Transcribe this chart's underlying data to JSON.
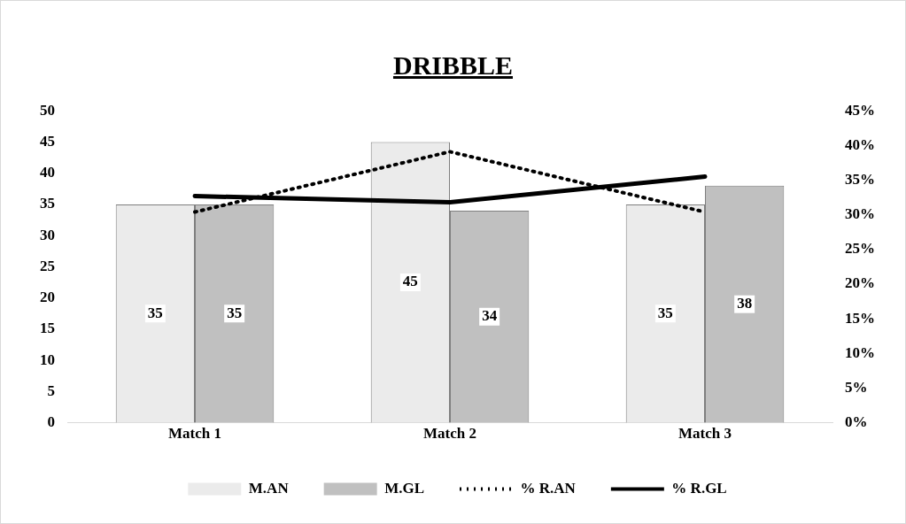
{
  "chart_data": {
    "type": "bar",
    "title": "DRIBBLE",
    "categories": [
      "Match 1",
      "Match 2",
      "Match 3"
    ],
    "series": [
      {
        "name": "M.AN",
        "color": "#ebebeb",
        "values": [
          35,
          45,
          35
        ],
        "value_labels": [
          "35",
          "45",
          "35"
        ]
      },
      {
        "name": "M.GL",
        "color": "#c0c0c0",
        "values": [
          35,
          34,
          38
        ],
        "value_labels": [
          "35",
          "34",
          "38"
        ]
      },
      {
        "name": "% R.AN",
        "type": "line",
        "axis": "y2",
        "color": "#000000",
        "line_style": "dotted",
        "values": [
          30.4,
          39.1,
          30.4
        ]
      },
      {
        "name": "% R.GL",
        "type": "line",
        "axis": "y2",
        "color": "#000000",
        "line_style": "solid",
        "values": [
          32.7,
          31.8,
          35.5
        ]
      }
    ],
    "ylim": [
      0,
      50
    ],
    "yticks": [
      0,
      5,
      10,
      15,
      20,
      25,
      30,
      35,
      40,
      45,
      50
    ],
    "y2lim": [
      0,
      45
    ],
    "y2ticks": [
      {
        "value": 0,
        "label": "0%"
      },
      {
        "value": 5,
        "label": "5%"
      },
      {
        "value": 10,
        "label": "10%"
      },
      {
        "value": 15,
        "label": "15%"
      },
      {
        "value": 20,
        "label": "20%"
      },
      {
        "value": 25,
        "label": "25%"
      },
      {
        "value": 30,
        "label": "30%"
      },
      {
        "value": 35,
        "label": "35%"
      },
      {
        "value": 40,
        "label": "40%"
      },
      {
        "value": 45,
        "label": "45%"
      }
    ],
    "grid": false,
    "legend": "bottom",
    "marker": "none"
  }
}
